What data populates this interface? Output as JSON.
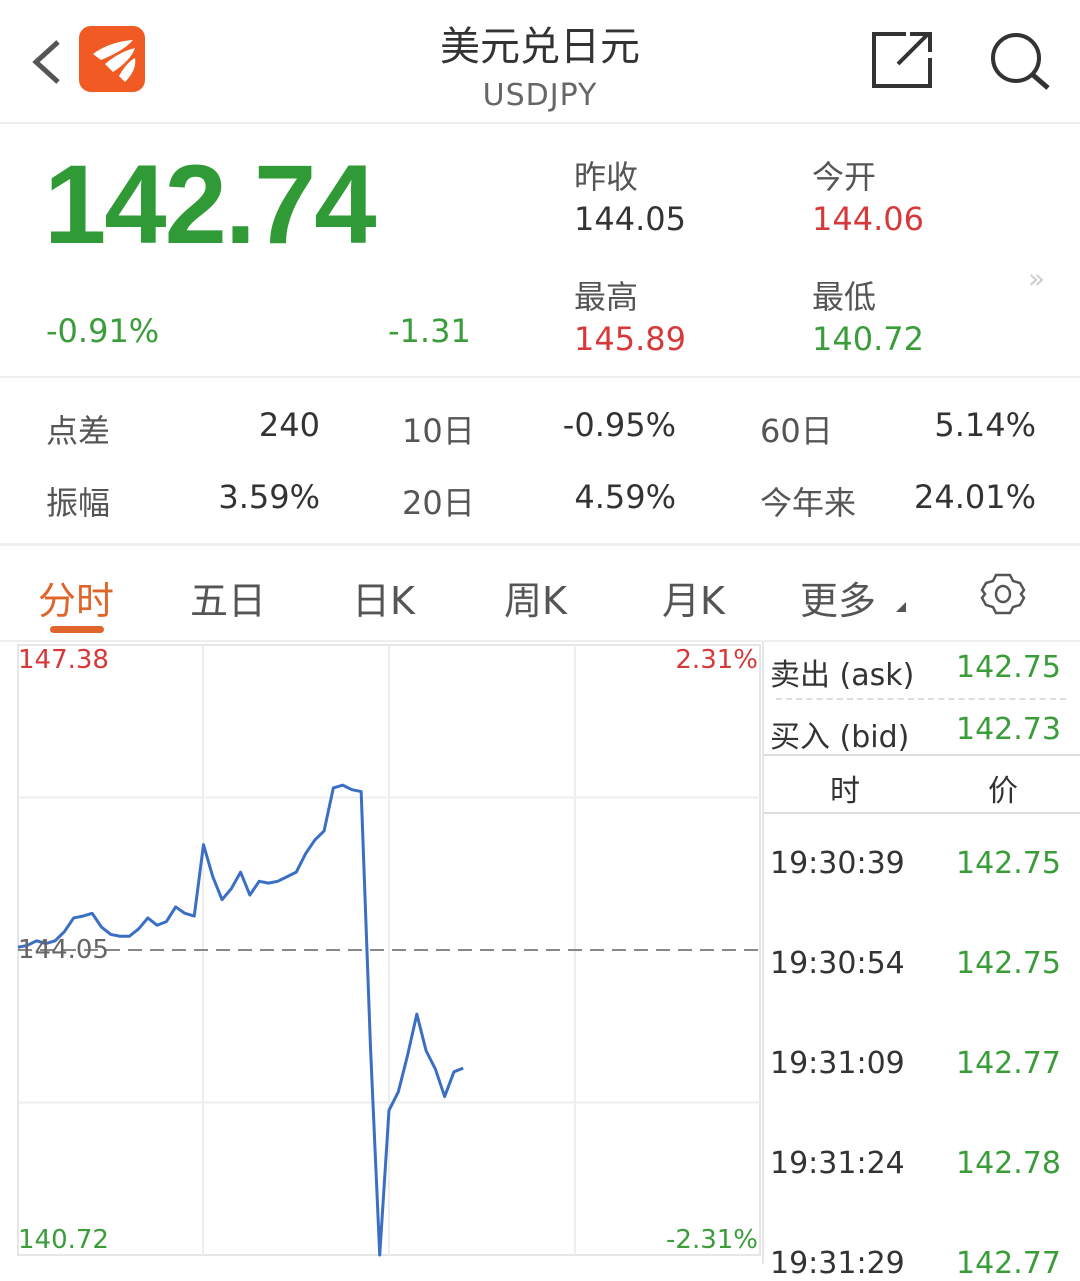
{
  "header": {
    "title": "美元兑日元",
    "symbol": "USDJPY",
    "back_icon": "chevron-left-icon",
    "logo_icon": "app-logo-icon",
    "share_icon": "share-icon",
    "search_icon": "search-icon"
  },
  "quote": {
    "price": "142.74",
    "change_pct": "-0.91%",
    "change": "-1.31",
    "prev_close_label": "昨收",
    "prev_close": "144.05",
    "open_label": "今开",
    "open": "144.06",
    "high_label": "最高",
    "high": "145.89",
    "low_label": "最低",
    "low": "140.72",
    "more_icon": "double-chevron-right-icon"
  },
  "stats": [
    {
      "label": "点差",
      "value": "240"
    },
    {
      "label": "10日",
      "value": "-0.95%"
    },
    {
      "label": "60日",
      "value": "5.14%"
    },
    {
      "label": "振幅",
      "value": "3.59%"
    },
    {
      "label": "20日",
      "value": "4.59%"
    },
    {
      "label": "今年来",
      "value": "24.01%"
    }
  ],
  "tabs": [
    {
      "label": "分时",
      "active": true
    },
    {
      "label": "五日"
    },
    {
      "label": "日K"
    },
    {
      "label": "周K"
    },
    {
      "label": "月K"
    },
    {
      "label": "更多"
    }
  ],
  "settings_icon": "gear-icon",
  "colors": {
    "up": "#d7393a",
    "down": "#3a9d3a",
    "line": "#3a6fc4",
    "accent": "#e0652a"
  },
  "chart_data": {
    "type": "line",
    "ylim": [
      140.72,
      147.38
    ],
    "y_labels": {
      "top": "147.38",
      "bottom": "140.72",
      "ref": "144.05"
    },
    "pct_labels": {
      "top": "2.31%",
      "bottom": "-2.31%"
    },
    "reference": 144.05,
    "grid": true,
    "values": [
      144.08,
      144.1,
      144.15,
      144.12,
      144.15,
      144.25,
      144.4,
      144.42,
      144.45,
      144.3,
      144.22,
      144.2,
      144.2,
      144.28,
      144.4,
      144.32,
      144.36,
      144.52,
      144.45,
      144.42,
      145.2,
      144.85,
      144.6,
      144.72,
      144.9,
      144.65,
      144.8,
      144.78,
      144.8,
      144.85,
      144.9,
      145.1,
      145.25,
      145.35,
      145.82,
      145.85,
      145.8,
      145.78,
      143.0,
      140.72,
      142.3,
      142.5,
      142.9,
      143.35,
      142.95,
      142.75,
      142.45,
      142.72,
      142.76
    ]
  },
  "side": {
    "ask_label": "卖出 (ask)",
    "ask": "142.75",
    "bid_label": "买入 (bid)",
    "bid": "142.73",
    "col_time": "时",
    "col_price": "价",
    "ticks": [
      {
        "time": "19:30:39",
        "price": "142.75"
      },
      {
        "time": "19:30:54",
        "price": "142.75"
      },
      {
        "time": "19:31:09",
        "price": "142.77"
      },
      {
        "time": "19:31:24",
        "price": "142.78"
      },
      {
        "time": "19:31:29",
        "price": "142.77"
      }
    ]
  }
}
